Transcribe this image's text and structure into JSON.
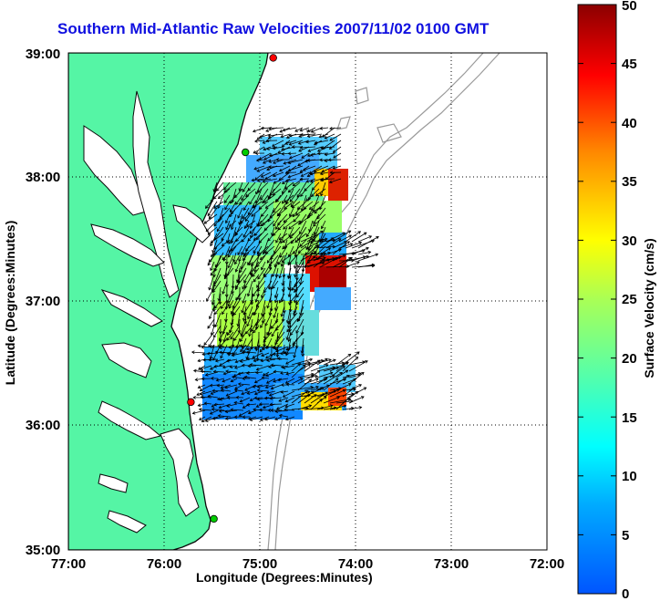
{
  "title": "Southern Mid-Atlantic Raw Velocities 2007/11/02 0100 GMT",
  "axes": {
    "xlabel": "Longitude (Degrees:Minutes)",
    "ylabel": "Latitude (Degrees:Minutes)",
    "x_ticks": [
      "77:00",
      "76:00",
      "75:00",
      "74:00",
      "73:00",
      "72:00"
    ],
    "y_ticks": [
      "39:00",
      "38:00",
      "37:00",
      "36:00",
      "35:00"
    ],
    "x_range": [
      -77,
      -72
    ],
    "y_range": [
      35,
      39
    ],
    "grid": "dotted"
  },
  "colorbar": {
    "label": "Surface Velocity (cm/s)",
    "ticks": [
      "0",
      "5",
      "10",
      "15",
      "20",
      "25",
      "30",
      "35",
      "40",
      "45",
      "50"
    ],
    "range": [
      0,
      50
    ],
    "colormap": "jet"
  },
  "colors": {
    "land": "#55f5a5",
    "coast": "#0a0a0a",
    "bathymetry": "#9a9a9a",
    "vectors": "#000000",
    "title": "#1010e0",
    "station": "#ff0000"
  },
  "stations": [
    {
      "lon": -74.86,
      "lat": 38.96,
      "color": "#ff0000"
    },
    {
      "lon": -75.15,
      "lat": 38.2,
      "color": "#00cc00"
    },
    {
      "lon": -75.72,
      "lat": 36.19,
      "color": "#ff0000"
    },
    {
      "lon": -75.48,
      "lat": 35.25,
      "color": "#00cc00"
    }
  ]
}
